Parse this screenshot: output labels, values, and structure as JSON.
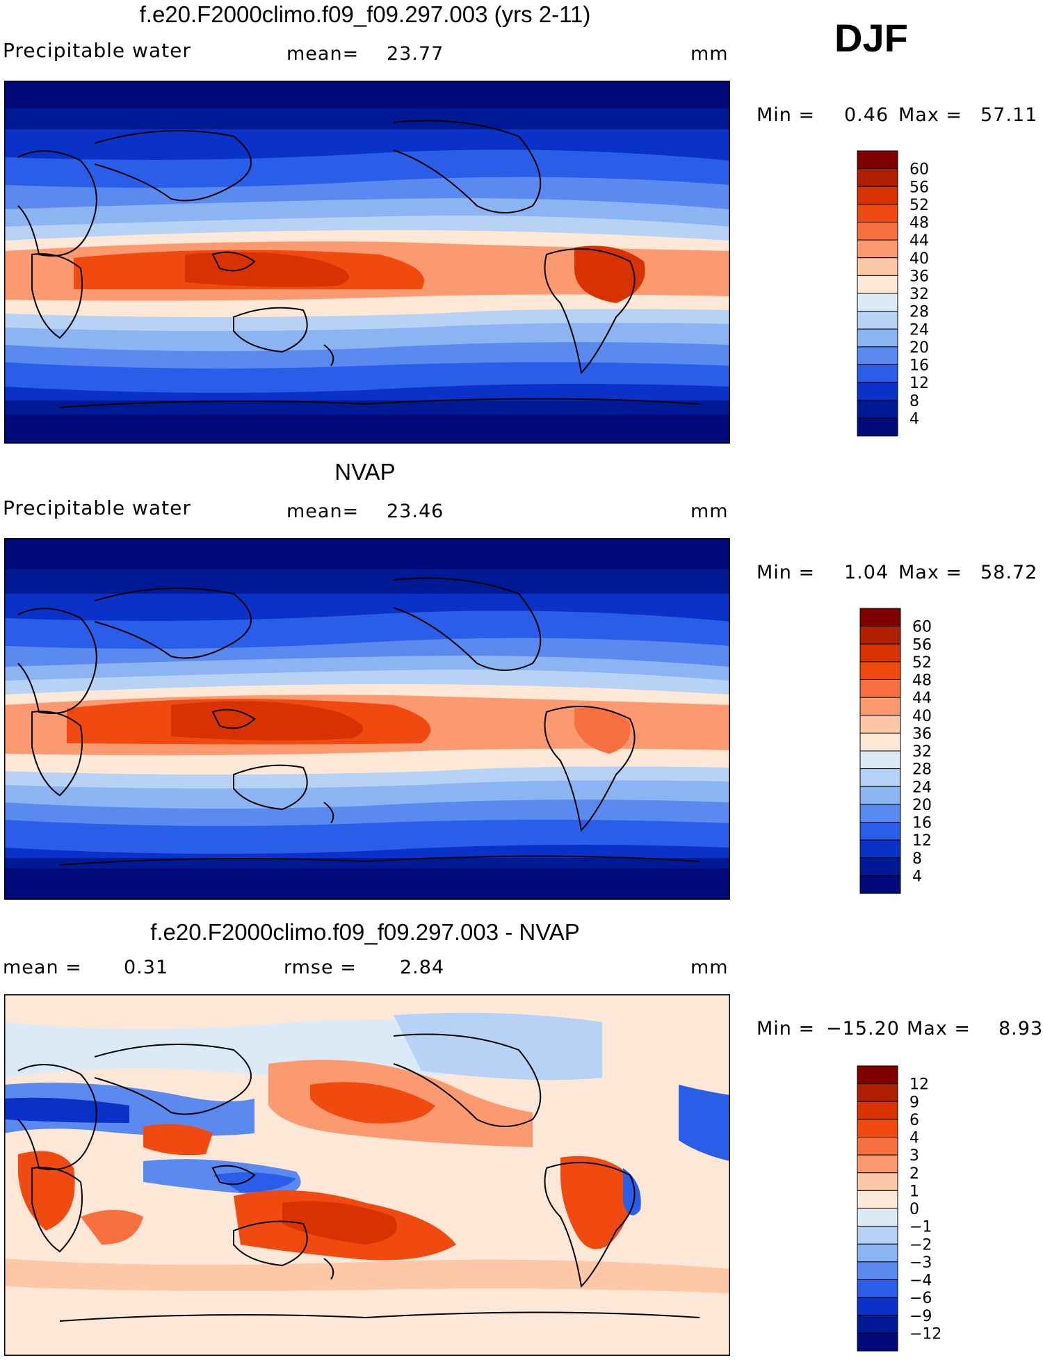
{
  "season": "DJF",
  "chart_data": [
    {
      "type": "heatmap",
      "title": "f.e20.F2000climo.f09_f09.297.003 (yrs 2-11)",
      "left_label": "Precipitable water",
      "center_label": "mean=",
      "center_value": "23.77",
      "units": "mm",
      "min_label": "Min =",
      "min_value": "0.46",
      "max_label": "Max =",
      "max_value": "57.11",
      "colorbar": {
        "ticks": [
          "60",
          "56",
          "52",
          "48",
          "44",
          "40",
          "36",
          "32",
          "28",
          "24",
          "20",
          "16",
          "12",
          "8",
          "4"
        ],
        "colors": [
          "#800000",
          "#b01e00",
          "#d83200",
          "#f04a10",
          "#f87040",
          "#fb9a70",
          "#fdc8a8",
          "#fde8d8",
          "#dceaf8",
          "#b8d2f6",
          "#8cb4f2",
          "#5a8af0",
          "#2a5ee8",
          "#0a32c8",
          "#001a96",
          "#000a78"
        ]
      }
    },
    {
      "type": "heatmap",
      "title": "NVAP",
      "left_label": "Precipitable water",
      "center_label": "mean=",
      "center_value": "23.46",
      "units": "mm",
      "min_label": "Min =",
      "min_value": "1.04",
      "max_label": "Max =",
      "max_value": "58.72",
      "colorbar": {
        "ticks": [
          "60",
          "56",
          "52",
          "48",
          "44",
          "40",
          "36",
          "32",
          "28",
          "24",
          "20",
          "16",
          "12",
          "8",
          "4"
        ],
        "colors": [
          "#800000",
          "#b01e00",
          "#d83200",
          "#f04a10",
          "#f87040",
          "#fb9a70",
          "#fdc8a8",
          "#fde8d8",
          "#dceaf8",
          "#b8d2f6",
          "#8cb4f2",
          "#5a8af0",
          "#2a5ee8",
          "#0a32c8",
          "#001a96",
          "#000a78"
        ]
      }
    },
    {
      "type": "heatmap",
      "title": "f.e20.F2000climo.f09_f09.297.003 - NVAP",
      "left_label": "mean =",
      "left_value": "0.31",
      "center_label": "rmse =",
      "center_value": "2.84",
      "units": "mm",
      "min_label": "Min =",
      "min_value": "−15.20",
      "max_label": "Max =",
      "max_value": "8.93",
      "colorbar": {
        "ticks": [
          "12",
          "9",
          "6",
          "4",
          "3",
          "2",
          "1",
          "0",
          "−1",
          "−2",
          "−3",
          "−4",
          "−6",
          "−9",
          "−12"
        ],
        "colors": [
          "#800000",
          "#b01e00",
          "#d83200",
          "#f04a10",
          "#f87040",
          "#fb9a70",
          "#fdc8a8",
          "#fde8d8",
          "#dceaf8",
          "#b8d2f6",
          "#8cb4f2",
          "#5a8af0",
          "#2a5ee8",
          "#0a32c8",
          "#001a96",
          "#000a78"
        ]
      }
    }
  ]
}
